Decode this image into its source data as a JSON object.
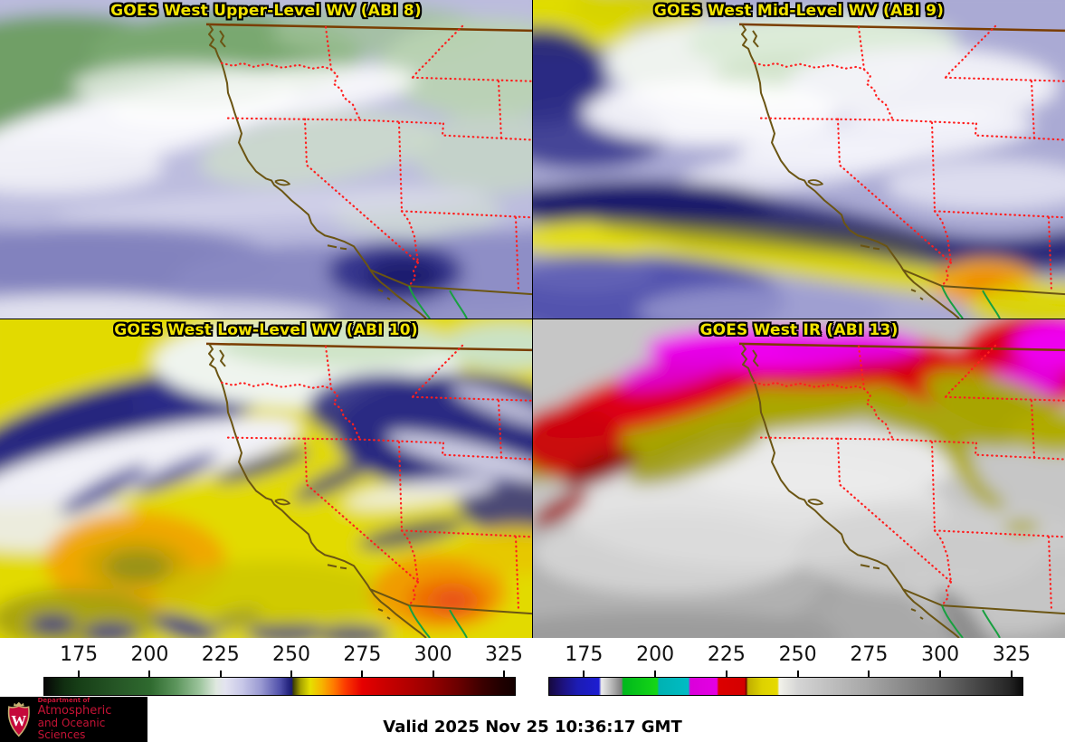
{
  "panels": [
    {
      "id": "abi8",
      "title": "GOES West Upper-Level WV (ABI 8)"
    },
    {
      "id": "abi9",
      "title": "GOES West Mid-Level WV (ABI 9)"
    },
    {
      "id": "abi10",
      "title": "GOES West Low-Level WV (ABI 10)"
    },
    {
      "id": "abi13",
      "title": "GOES West IR (ABI 13)"
    }
  ],
  "colorbars": {
    "wv": {
      "ticks": [
        "175",
        "200",
        "225",
        "250",
        "275",
        "300",
        "325"
      ],
      "gradient": [
        [
          "0%",
          "#060606"
        ],
        [
          "4%",
          "#102d10"
        ],
        [
          "7.5%",
          "#173f17"
        ],
        [
          "15%",
          "#255525"
        ],
        [
          "22.5%",
          "#2f6a2f"
        ],
        [
          "28%",
          "#5c955c"
        ],
        [
          "33%",
          "#9cc49c"
        ],
        [
          "36.5%",
          "#dfe8df"
        ],
        [
          "38.5%",
          "#e3e3f0"
        ],
        [
          "42%",
          "#c8c8e8"
        ],
        [
          "46%",
          "#9a9ad2"
        ],
        [
          "50%",
          "#5353ac"
        ],
        [
          "52%",
          "#24247e"
        ],
        [
          "52.6%",
          "#1c1c72"
        ],
        [
          "52.9%",
          "#3d3d05"
        ],
        [
          "54.5%",
          "#a8a400"
        ],
        [
          "56.5%",
          "#e6e000"
        ],
        [
          "59%",
          "#f6b400"
        ],
        [
          "61.5%",
          "#ff7a00"
        ],
        [
          "64%",
          "#fb3a00"
        ],
        [
          "67.5%",
          "#e60000"
        ],
        [
          "72%",
          "#cc0000"
        ],
        [
          "78%",
          "#ae0000"
        ],
        [
          "82.5%",
          "#940000"
        ],
        [
          "88%",
          "#6a0000"
        ],
        [
          "93%",
          "#3c0000"
        ],
        [
          "97.5%",
          "#1e0000"
        ],
        [
          "100%",
          "#140000"
        ]
      ]
    },
    "ir": {
      "ticks": [
        "175",
        "200",
        "225",
        "250",
        "275",
        "300",
        "325"
      ],
      "gradient": [
        [
          "0%",
          "#16093e"
        ],
        [
          "3%",
          "#1d1280"
        ],
        [
          "6%",
          "#1c1cb4"
        ],
        [
          "10.5%",
          "#1d1dd2"
        ],
        [
          "11%",
          "#ededed"
        ],
        [
          "13%",
          "#bcbcbc"
        ],
        [
          "15.3%",
          "#7e7e7e"
        ],
        [
          "15.6%",
          "#00b81c"
        ],
        [
          "22.8%",
          "#16d616"
        ],
        [
          "23.2%",
          "#00b2b2"
        ],
        [
          "29.4%",
          "#00bcc4"
        ],
        [
          "29.8%",
          "#da00da"
        ],
        [
          "35.4%",
          "#e400e4"
        ],
        [
          "35.8%",
          "#dc0000"
        ],
        [
          "41.3%",
          "#d40000"
        ],
        [
          "41.6%",
          "#6a0000"
        ],
        [
          "42%",
          "#c0ae00"
        ],
        [
          "45%",
          "#ddd200"
        ],
        [
          "48.2%",
          "#e6da00"
        ],
        [
          "48.6%",
          "#f2f2ea"
        ],
        [
          "52.6%",
          "#d4d4d4"
        ],
        [
          "67.3%",
          "#a6a6a6"
        ],
        [
          "82.3%",
          "#6e6e6e"
        ],
        [
          "97.1%",
          "#262626"
        ],
        [
          "100%",
          "#0a0a0a"
        ]
      ]
    }
  },
  "footer": {
    "valid": "Valid 2025 Nov 25 10:36:17 GMT"
  },
  "logo": {
    "dept": "Department of",
    "line1": "Atmospheric",
    "line2": "and Oceanic Sciences",
    "letter": "W"
  },
  "map_colors": {
    "border_dotted": "#ff1f1f",
    "coast": "#6b5513",
    "canada": "#7a3d00",
    "river": "#18a040"
  }
}
